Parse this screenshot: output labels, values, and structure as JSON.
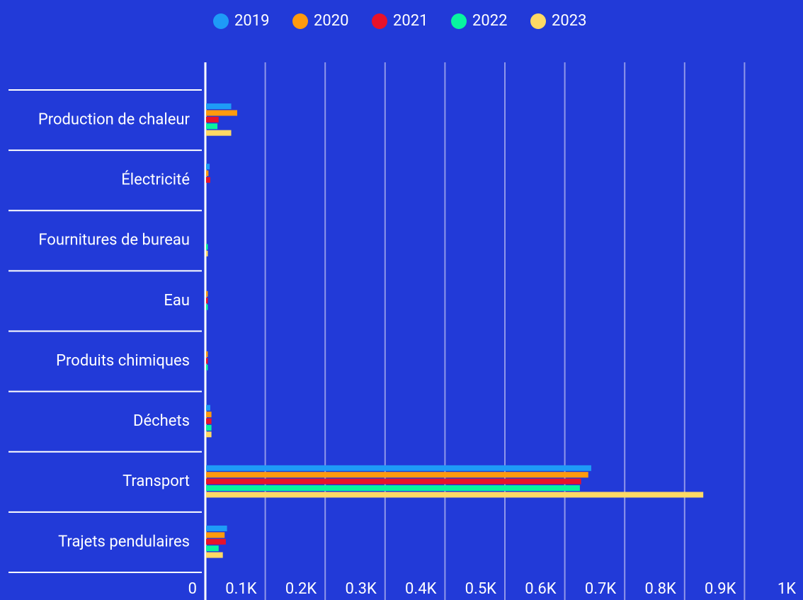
{
  "chart_data": {
    "type": "horizontal_bar",
    "categories": [
      "Production de chaleur",
      "Électricité",
      "Fournitures de bureau",
      "Eau",
      "Produits chimiques",
      "Déchets",
      "Transport",
      "Trajets pendulaires"
    ],
    "series": [
      {
        "name": "2019",
        "color": "#1e9bf7",
        "values": [
          42,
          6,
          0,
          0,
          0,
          7,
          643,
          35
        ]
      },
      {
        "name": "2020",
        "color": "#ff9a0e",
        "values": [
          52,
          4,
          0,
          3,
          3,
          9,
          638,
          31
        ]
      },
      {
        "name": "2021",
        "color": "#e8122a",
        "values": [
          21,
          7,
          0,
          3,
          3,
          9,
          626,
          33
        ]
      },
      {
        "name": "2022",
        "color": "#08f3a0",
        "values": [
          19,
          0,
          3,
          3,
          3,
          9,
          624,
          21
        ]
      },
      {
        "name": "2023",
        "color": "#ffd965",
        "values": [
          42,
          0,
          3,
          0,
          0,
          9,
          830,
          28
        ]
      }
    ],
    "xlim": [
      0,
      1000
    ],
    "xticks": [
      0,
      {
        "value": 100,
        "label": "0.1K"
      },
      {
        "value": 200,
        "label": "0.2K"
      },
      {
        "value": 300,
        "label": "0.3K"
      },
      {
        "value": 400,
        "label": "0.4K"
      },
      {
        "value": 500,
        "label": "0.5K"
      },
      {
        "value": 600,
        "label": "0.6K"
      },
      {
        "value": 700,
        "label": "0.7K"
      },
      {
        "value": 800,
        "label": "0.8K"
      },
      {
        "value": 900,
        "label": "0.9K"
      },
      {
        "value": 1000,
        "label": "1K"
      }
    ],
    "grid": true,
    "legend": "top"
  }
}
